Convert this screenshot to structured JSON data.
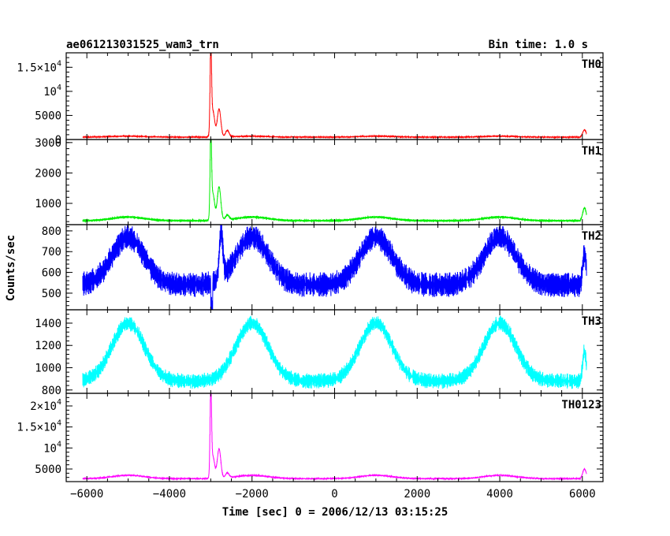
{
  "header": {
    "title": "ae061213031525_wam3_trn",
    "bin_time": "Bin time: 1.0 s"
  },
  "chart_data": {
    "type": "line",
    "xlabel": "Time [sec] 0 = 2006/12/13 03:15:25",
    "ylabel": "Counts/sec",
    "xlim": [
      -6500,
      6500
    ],
    "x_ticks": [
      -6000,
      -4000,
      -2000,
      0,
      2000,
      4000,
      6000
    ],
    "x_tick_labels": [
      "−6000",
      "−4000",
      "−2000",
      "0",
      "2000",
      "4000",
      "6000"
    ],
    "panels": [
      {
        "name": "TH0",
        "color": "#ff0000",
        "ylim": [
          0,
          18000
        ],
        "ticks": [
          {
            "v": 0,
            "base": "0",
            "exp": ""
          },
          {
            "v": 5000,
            "base": "5000",
            "exp": ""
          },
          {
            "v": 10000,
            "base": "10",
            "exp": "4"
          },
          {
            "v": 15000,
            "base": "1.5×10",
            "exp": "4"
          }
        ],
        "baseline": 500,
        "mod_amp": 200,
        "noise": 120,
        "flare": [
          [
            -3000,
            17500
          ],
          [
            -2950,
            6500
          ],
          [
            -2800,
            7000
          ],
          [
            -2600,
            2000
          ]
        ],
        "tail": 2000
      },
      {
        "name": "TH1",
        "color": "#00ee00",
        "ylim": [
          300,
          3100
        ],
        "ticks": [
          {
            "v": 1000,
            "base": "1000",
            "exp": ""
          },
          {
            "v": 2000,
            "base": "2000",
            "exp": ""
          },
          {
            "v": 3000,
            "base": "3000",
            "exp": ""
          }
        ],
        "baseline": 430,
        "mod_amp": 120,
        "noise": 40,
        "flare": [
          [
            -3000,
            3050
          ],
          [
            -2950,
            1400
          ],
          [
            -2800,
            1650
          ],
          [
            -2600,
            600
          ]
        ],
        "tail": 850
      },
      {
        "name": "TH2",
        "color": "#0000ff",
        "ylim": [
          420,
          830
        ],
        "ticks": [
          {
            "v": 500,
            "base": "500",
            "exp": ""
          },
          {
            "v": 600,
            "base": "600",
            "exp": ""
          },
          {
            "v": 700,
            "base": "700",
            "exp": ""
          },
          {
            "v": 800,
            "base": "800",
            "exp": ""
          }
        ],
        "baseline": 540,
        "mod_amp": 230,
        "noise": 60,
        "flare": [
          [
            -2750,
            790
          ]
        ],
        "tail": 690
      },
      {
        "name": "TH3",
        "color": "#00ffff",
        "ylim": [
          770,
          1520
        ],
        "ticks": [
          {
            "v": 800,
            "base": "800",
            "exp": ""
          },
          {
            "v": 1000,
            "base": "1000",
            "exp": ""
          },
          {
            "v": 1200,
            "base": "1200",
            "exp": ""
          },
          {
            "v": 1400,
            "base": "1400",
            "exp": ""
          }
        ],
        "baseline": 880,
        "mod_amp": 520,
        "noise": 70,
        "flare": [],
        "tail": 1150
      },
      {
        "name": "TH0123",
        "color": "#ff00ff",
        "ylim": [
          2000,
          23000
        ],
        "ticks": [
          {
            "v": 5000,
            "base": "5000",
            "exp": ""
          },
          {
            "v": 10000,
            "base": "10",
            "exp": "4"
          },
          {
            "v": 15000,
            "base": "1.5×10",
            "exp": "4"
          },
          {
            "v": 20000,
            "base": "2×10",
            "exp": "4"
          }
        ],
        "baseline": 2700,
        "mod_amp": 800,
        "noise": 150,
        "flare": [
          [
            -3000,
            22500
          ],
          [
            -2950,
            8500
          ],
          [
            -2800,
            10500
          ],
          [
            -2600,
            4000
          ]
        ],
        "tail": 5000
      }
    ],
    "modulation_peaks": [
      -5000,
      -2000,
      1000,
      4000
    ],
    "data_x_range": [
      -6100,
      6100
    ]
  }
}
